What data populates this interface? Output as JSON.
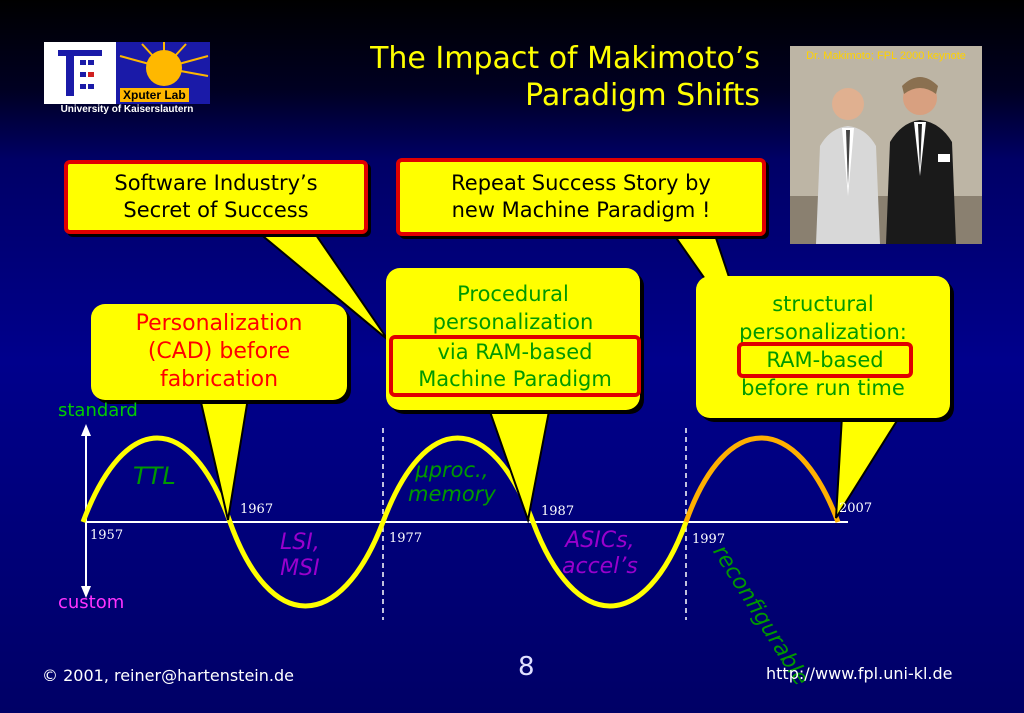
{
  "logo": {
    "lab": "Xputer Lab",
    "university": "University of Kaiserslautern"
  },
  "title": {
    "line1": "The Impact of Makimoto’s",
    "line2": "Paradigm Shifts"
  },
  "photo": {
    "caption": "Dr. Makimoto; FPL 2000 keynote"
  },
  "top_boxes": {
    "software": {
      "line1": "Software Industry’s",
      "line2": "Secret of Success"
    },
    "repeat": {
      "line1": "Repeat Success Story by",
      "line2": "new Machine Paradigm !"
    }
  },
  "callouts": {
    "personalization": {
      "line1": "Personalization",
      "line2": "(CAD) before",
      "line3": "fabrication"
    },
    "procedural": {
      "line1": "Procedural",
      "line2": "personalization",
      "boxed1": "via RAM-based",
      "boxed2": "Machine Paradigm"
    },
    "structural": {
      "line1": "structural",
      "line2": "personalization:",
      "boxed": "RAM-based",
      "line4": "before run time"
    }
  },
  "axis": {
    "top": "standard",
    "bottom": "custom"
  },
  "years": [
    "1957",
    "1967",
    "1977",
    "1987",
    "1997",
    "2007"
  ],
  "wave_labels": {
    "ttl": "TTL",
    "lsi1": "LSI,",
    "lsi2": "MSI",
    "proc1": "μproc.,",
    "proc2": "memory",
    "asic1": "ASICs,",
    "asic2": "accel’s",
    "reconf": "reconfigurable"
  },
  "footer": {
    "copyright": "©",
    "year_author": "2001, reiner@hartenstein.de",
    "page": "8",
    "url": "http://www.fpl.uni-kl.de"
  },
  "colors": {
    "title": "#ffff00",
    "callout": "#ffff00",
    "red": "#e00000",
    "green": "#009900",
    "purple": "#9900cc",
    "wave": "#ffff00",
    "reconf_wave": "#ffb000",
    "background": "#00008c"
  }
}
